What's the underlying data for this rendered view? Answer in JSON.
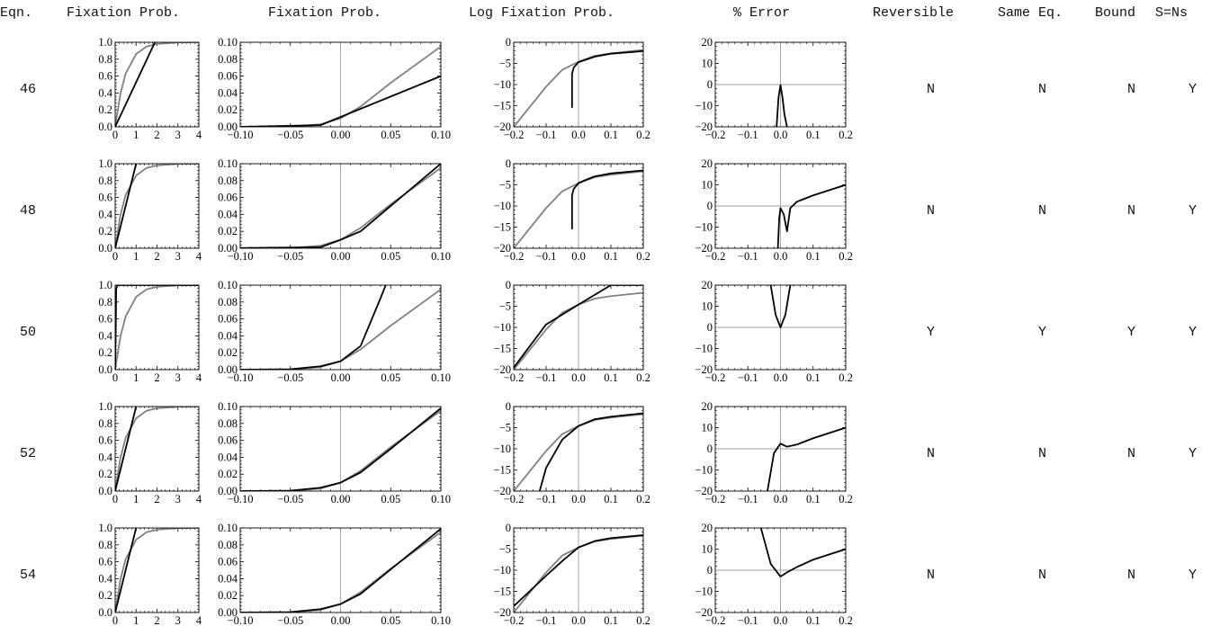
{
  "headers": [
    "Eqn.",
    "Fixation Prob.",
    "Fixation Prob.",
    "Log Fixation Prob.",
    "% Error",
    "Reversible",
    "Same Eq.",
    "Bound",
    "S=Ns"
  ],
  "rows": [
    {
      "eqn": "46",
      "reversible": "N",
      "same_eq": "N",
      "bound": "N",
      "s_ns": "Y"
    },
    {
      "eqn": "48",
      "reversible": "N",
      "same_eq": "N",
      "bound": "N",
      "s_ns": "Y"
    },
    {
      "eqn": "50",
      "reversible": "Y",
      "same_eq": "Y",
      "bound": "Y",
      "s_ns": "Y"
    },
    {
      "eqn": "52",
      "reversible": "N",
      "same_eq": "N",
      "bound": "N",
      "s_ns": "Y"
    },
    {
      "eqn": "54",
      "reversible": "N",
      "same_eq": "N",
      "bound": "N",
      "s_ns": "Y"
    }
  ],
  "chart_data": [
    {
      "panel": "fixation-prob-wide",
      "type": "line",
      "xlim": [
        0,
        4
      ],
      "ylim": [
        0,
        1
      ],
      "xticks": [
        "0",
        "1",
        "2",
        "3",
        "4"
      ],
      "yticks": [
        "0.0",
        "0.2",
        "0.4",
        "0.6",
        "0.8",
        "1.0"
      ],
      "reference_series": {
        "color": "#808080",
        "x": [
          0,
          0.25,
          0.5,
          1,
          1.5,
          2,
          3,
          4
        ],
        "y": [
          0,
          0.39,
          0.63,
          0.86,
          0.95,
          0.98,
          0.998,
          1.0
        ]
      },
      "approx_series_by_row": {
        "46": {
          "color": "#000000",
          "x": [
            0,
            1.9
          ],
          "y": [
            0,
            1.0
          ]
        },
        "48": {
          "color": "#000000",
          "x": [
            0,
            1.0
          ],
          "y": [
            0,
            1.0
          ]
        },
        "50": {
          "color": "#000000",
          "x": [
            0,
            0.05,
            0.1,
            0.2,
            4
          ],
          "y": [
            0,
            0.95,
            1.0,
            1.0,
            1.0
          ]
        },
        "52": {
          "color": "#000000",
          "x": [
            0,
            1.0
          ],
          "y": [
            0,
            1.0
          ]
        },
        "54": {
          "color": "#000000",
          "x": [
            0,
            1.0
          ],
          "y": [
            0,
            1.0
          ]
        }
      }
    },
    {
      "panel": "fixation-prob-narrow",
      "type": "line",
      "xlim": [
        -0.1,
        0.1
      ],
      "ylim": [
        0,
        0.1
      ],
      "xticks": [
        "−0.10",
        "−0.05",
        "0.00",
        "0.05",
        "0.10"
      ],
      "yticks": [
        "0.00",
        "0.02",
        "0.04",
        "0.06",
        "0.08",
        "0.10"
      ],
      "reference_series": {
        "color": "#808080",
        "x": [
          -0.1,
          -0.05,
          -0.02,
          0,
          0.02,
          0.05,
          0.1
        ],
        "y": [
          0,
          0.0003,
          0.003,
          0.01,
          0.024,
          0.052,
          0.095
        ]
      },
      "approx_series_by_row": {
        "46": {
          "color": "#000000",
          "x": [
            -0.1,
            -0.02,
            0.1
          ],
          "y": [
            0,
            0.002,
            0.06
          ]
        },
        "48": {
          "color": "#000000",
          "x": [
            -0.1,
            -0.02,
            0,
            0.02,
            0.1
          ],
          "y": [
            0.0002,
            0.0012,
            0.01,
            0.02,
            0.1
          ]
        },
        "50": {
          "color": "#000000",
          "x": [
            -0.1,
            -0.05,
            -0.02,
            0,
            0.02,
            0.04,
            0.045
          ],
          "y": [
            0,
            0.0005,
            0.004,
            0.01,
            0.028,
            0.085,
            0.1
          ]
        },
        "52": {
          "color": "#000000",
          "x": [
            -0.1,
            -0.05,
            -0.02,
            0,
            0.02,
            0.05,
            0.1
          ],
          "y": [
            0,
            0.0005,
            0.004,
            0.01,
            0.022,
            0.05,
            0.098
          ]
        },
        "54": {
          "color": "#000000",
          "x": [
            -0.1,
            -0.05,
            -0.02,
            0,
            0.02,
            0.05,
            0.1
          ],
          "y": [
            0,
            0.0005,
            0.004,
            0.01,
            0.022,
            0.051,
            0.099
          ]
        }
      }
    },
    {
      "panel": "log-fixation-prob",
      "type": "line",
      "xlim": [
        -0.2,
        0.2
      ],
      "ylim": [
        -20,
        0
      ],
      "xticks": [
        "−0.2",
        "−0.1",
        "0.0",
        "0.1",
        "0.2"
      ],
      "yticks": [
        "0",
        "−5",
        "−10",
        "−15",
        "−20"
      ],
      "reference_series": {
        "color": "#808080",
        "x": [
          -0.2,
          -0.1,
          -0.05,
          0,
          0.05,
          0.1,
          0.2
        ],
        "y": [
          -20,
          -10.5,
          -6.5,
          -4.6,
          -3.2,
          -2.6,
          -1.8
        ]
      },
      "approx_series_by_row": {
        "46": {
          "color": "#000000",
          "x": [
            -0.02,
            -0.02,
            -0.015,
            0,
            0.05,
            0.1,
            0.2
          ],
          "y": [
            -15.5,
            -7.5,
            -6,
            -4.7,
            -3.4,
            -2.7,
            -2.1
          ]
        },
        "48": {
          "color": "#000000",
          "x": [
            -0.02,
            -0.02,
            -0.015,
            0,
            0.02,
            0.05,
            0.1,
            0.2
          ],
          "y": [
            -15.5,
            -7.5,
            -6,
            -4.6,
            -3.9,
            -3.0,
            -2.3,
            -1.6
          ]
        },
        "50": {
          "color": "#000000",
          "x": [
            -0.2,
            -0.1,
            0,
            0.1,
            0.2
          ],
          "y": [
            -19.5,
            -9.3,
            -4.6,
            0,
            0
          ]
        },
        "52": {
          "color": "#000000",
          "x": [
            -0.12,
            -0.1,
            -0.05,
            0,
            0.05,
            0.1,
            0.2
          ],
          "y": [
            -20,
            -14.5,
            -7.8,
            -4.6,
            -3.0,
            -2.4,
            -1.6
          ]
        },
        "54": {
          "color": "#000000",
          "x": [
            -0.2,
            -0.1,
            -0.05,
            0,
            0.05,
            0.1,
            0.2
          ],
          "y": [
            -18.5,
            -11.3,
            -7.8,
            -4.6,
            -3.1,
            -2.4,
            -1.7
          ]
        }
      }
    },
    {
      "panel": "percent-error",
      "type": "line",
      "xlim": [
        -0.2,
        0.2
      ],
      "ylim": [
        -20,
        20
      ],
      "xticks": [
        "−0.2",
        "−0.1",
        "0.0",
        "0.1",
        "0.2"
      ],
      "yticks": [
        "20",
        "10",
        "0",
        "−10",
        "−20"
      ],
      "approx_series_by_row": {
        "46": {
          "color": "#000000",
          "x": [
            -0.012,
            -0.006,
            0,
            0.006,
            0.012,
            0.02
          ],
          "y": [
            -20,
            -6,
            -0.3,
            -6,
            -14,
            -20
          ]
        },
        "48": {
          "color": "#000000",
          "x": [
            -0.008,
            -0.004,
            0,
            0.01,
            0.02,
            0.03,
            0.05,
            0.1,
            0.2
          ],
          "y": [
            -20,
            -6,
            -1,
            -4,
            -12,
            -1,
            2,
            5,
            10
          ]
        },
        "50": {
          "color": "#000000",
          "x": [
            -0.03,
            -0.015,
            0,
            0.015,
            0.03
          ],
          "y": [
            20,
            6,
            0,
            6,
            20
          ]
        },
        "52": {
          "color": "#000000",
          "x": [
            -0.04,
            -0.02,
            0,
            0.02,
            0.05,
            0.1,
            0.2
          ],
          "y": [
            -20,
            -2,
            2.5,
            1,
            2,
            5,
            10
          ]
        },
        "54": {
          "color": "#000000",
          "x": [
            -0.06,
            -0.03,
            0,
            0.02,
            0.05,
            0.1,
            0.2
          ],
          "y": [
            20,
            3,
            -3,
            -1,
            1.5,
            5,
            10
          ]
        }
      }
    }
  ]
}
